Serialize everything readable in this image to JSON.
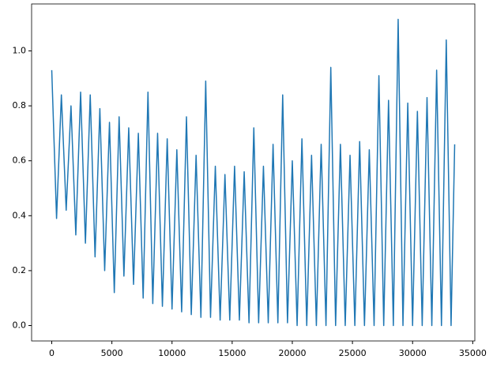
{
  "chart_data": {
    "type": "line",
    "x": [
      0,
      400,
      800,
      1200,
      1600,
      2000,
      2400,
      2800,
      3200,
      3600,
      4000,
      4400,
      4800,
      5200,
      5600,
      6000,
      6400,
      6800,
      7200,
      7600,
      8000,
      8400,
      8800,
      9200,
      9600,
      10000,
      10400,
      10800,
      11200,
      11600,
      12000,
      12400,
      12800,
      13200,
      13600,
      14000,
      14400,
      14800,
      15200,
      15600,
      16000,
      16400,
      16800,
      17200,
      17600,
      18000,
      18400,
      18800,
      19200,
      19600,
      20000,
      20400,
      20800,
      21200,
      21600,
      22000,
      22400,
      22800,
      23200,
      23600,
      24000,
      24400,
      24800,
      25200,
      25600,
      26000,
      26400,
      26800,
      27200,
      27600,
      28000,
      28400,
      28800,
      29200,
      29600,
      30000,
      30400,
      30800,
      31200,
      31600,
      32000,
      32400,
      32800,
      33200,
      33500
    ],
    "values": [
      0.93,
      0.39,
      0.84,
      0.42,
      0.8,
      0.33,
      0.85,
      0.3,
      0.84,
      0.25,
      0.79,
      0.2,
      0.74,
      0.12,
      0.76,
      0.18,
      0.72,
      0.15,
      0.7,
      0.1,
      0.85,
      0.08,
      0.7,
      0.07,
      0.68,
      0.06,
      0.64,
      0.05,
      0.76,
      0.04,
      0.62,
      0.03,
      0.89,
      0.03,
      0.58,
      0.02,
      0.55,
      0.02,
      0.58,
      0.02,
      0.56,
      0.01,
      0.72,
      0.01,
      0.58,
      0.01,
      0.66,
      0.01,
      0.84,
      0.01,
      0.6,
      0,
      0.68,
      0,
      0.62,
      0,
      0.66,
      0,
      0.94,
      0,
      0.66,
      0,
      0.62,
      0,
      0.67,
      0,
      0.64,
      0,
      0.91,
      0,
      0.82,
      0,
      1.115,
      0,
      0.81,
      0,
      0.78,
      0,
      0.83,
      0,
      0.93,
      0,
      1.04,
      0,
      0.66
    ],
    "color": "#1f77b4",
    "xlim": [
      -1675,
      35175
    ],
    "ylim": [
      -0.056,
      1.171
    ],
    "xticks": [
      0,
      5000,
      10000,
      15000,
      20000,
      25000,
      30000,
      35000
    ],
    "yticks": [
      {
        "value": 0,
        "label": "0.0"
      },
      0.2,
      0.4,
      0.6,
      0.8,
      {
        "value": 1,
        "label": "1.0"
      }
    ],
    "grid": false
  }
}
